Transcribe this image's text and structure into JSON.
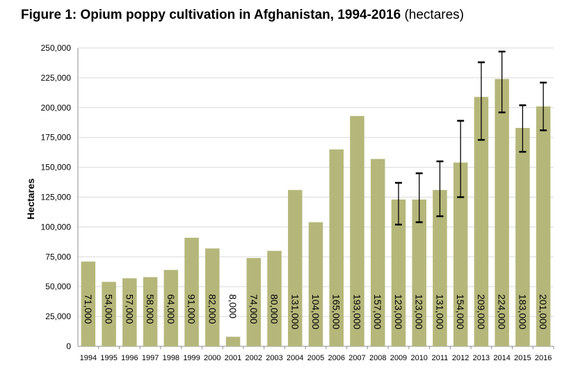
{
  "chart_data": {
    "type": "bar",
    "title_bold": "Figure 1: Opium poppy cultivation in Afghanistan, 1994-2016",
    "title_plain": "(hectares)",
    "xlabel": "",
    "ylabel": "Hectares",
    "ylim": [
      0,
      250000
    ],
    "yticks": [
      0,
      25000,
      50000,
      75000,
      100000,
      125000,
      150000,
      175000,
      200000,
      225000,
      250000
    ],
    "ytick_labels": [
      "0",
      "25,000",
      "50,000",
      "75,000",
      "100,000",
      "125,000",
      "150,000",
      "175,000",
      "200,000",
      "225,000",
      "250,000"
    ],
    "grid": true,
    "bar_color": "#b5b77a",
    "categories": [
      "1994",
      "1995",
      "1996",
      "1997",
      "1998",
      "1999",
      "2000",
      "2001",
      "2002",
      "2003",
      "2004",
      "2005",
      "2006",
      "2007",
      "2008",
      "2009",
      "2010",
      "2011",
      "2012",
      "2013",
      "2014",
      "2015",
      "2016"
    ],
    "values": [
      71000,
      54000,
      57000,
      58000,
      64000,
      91000,
      82000,
      8000,
      74000,
      80000,
      131000,
      104000,
      165000,
      193000,
      157000,
      123000,
      123000,
      131000,
      154000,
      209000,
      224000,
      183000,
      201000
    ],
    "data_labels": [
      "71,000",
      "54,000",
      "57,000",
      "58,000",
      "64,000",
      "91,000",
      "82,000",
      "8,000",
      "74,000",
      "80,000",
      "131,000",
      "104,000",
      "165,000",
      "193,000",
      "157,000",
      "123,000",
      "123,000",
      "131,000",
      "154,000",
      "209,000",
      "224,000",
      "183,000",
      "201,000"
    ],
    "error_bars": [
      {
        "category": "2009",
        "low": 102000,
        "high": 137000
      },
      {
        "category": "2010",
        "low": 104000,
        "high": 145000
      },
      {
        "category": "2011",
        "low": 109000,
        "high": 155000
      },
      {
        "category": "2012",
        "low": 125000,
        "high": 189000
      },
      {
        "category": "2013",
        "low": 173000,
        "high": 238000
      },
      {
        "category": "2014",
        "low": 196000,
        "high": 247000
      },
      {
        "category": "2015",
        "low": 163000,
        "high": 202000
      },
      {
        "category": "2016",
        "low": 181000,
        "high": 221000
      }
    ]
  }
}
